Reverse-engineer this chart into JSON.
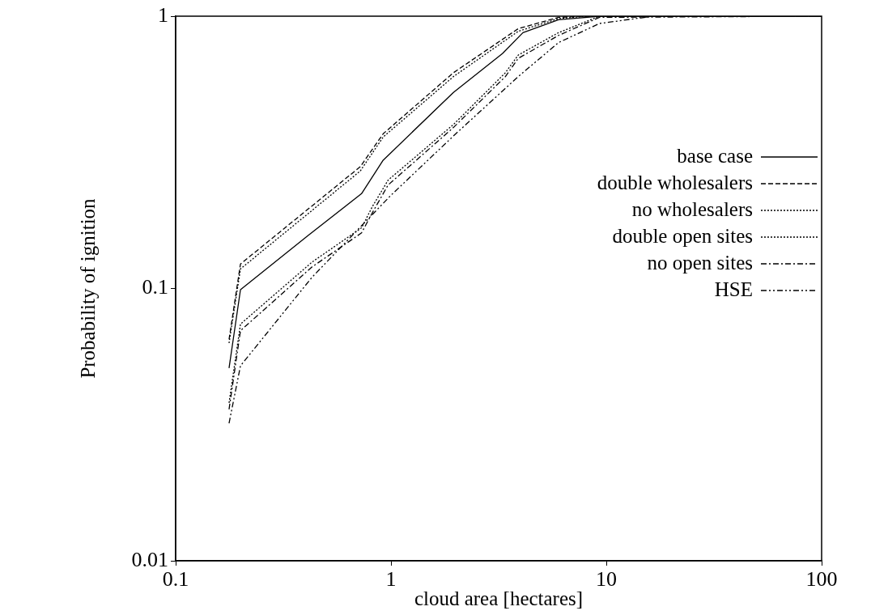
{
  "chart_data": {
    "type": "line",
    "xlabel": "cloud area [hectares]",
    "ylabel": "Probability of ignition",
    "log": "xy",
    "xlim": [
      0.1,
      100
    ],
    "ylim": [
      0.01,
      1
    ],
    "xticks": [
      0.1,
      1,
      10,
      100
    ],
    "yticks": [
      0.01,
      0.1,
      1
    ],
    "grid": false,
    "legend": "right",
    "marker": "none",
    "series": [
      {
        "name": "base case",
        "color": "#000000",
        "line_style": "solid",
        "x": [
          0.177,
          0.2,
          0.41,
          0.73,
          0.92,
          1.95,
          3.3,
          4.1,
          6,
          9.3,
          100
        ],
        "values": [
          0.051,
          0.099,
          0.156,
          0.223,
          0.296,
          0.525,
          0.73,
          0.87,
          0.97,
          1,
          1
        ]
      },
      {
        "name": "double wholesalers",
        "color": "#000000",
        "line_style": "dashed",
        "x": [
          0.177,
          0.2,
          0.72,
          0.92,
          1.95,
          3.9,
          6,
          8,
          100
        ],
        "values": [
          0.065,
          0.123,
          0.28,
          0.37,
          0.62,
          0.9,
          0.99,
          1,
          1
        ]
      },
      {
        "name": "no wholesalers",
        "color": "#000000",
        "line_style": "dotted",
        "x": [
          0.177,
          0.2,
          0.43,
          0.73,
          0.82,
          0.97,
          1.95,
          3.4,
          3.9,
          6,
          9.3,
          100
        ],
        "values": [
          0.038,
          0.074,
          0.125,
          0.167,
          0.2,
          0.25,
          0.4,
          0.62,
          0.72,
          0.87,
          1,
          1
        ]
      },
      {
        "name": "double open sites",
        "color": "#000000",
        "line_style": "dotted",
        "x": [
          0.177,
          0.2,
          0.72,
          0.92,
          1.95,
          3.9,
          6,
          8,
          100
        ],
        "values": [
          0.063,
          0.118,
          0.27,
          0.36,
          0.6,
          0.88,
          0.98,
          1,
          1
        ]
      },
      {
        "name": "no open sites",
        "color": "#000000",
        "line_style": "dashdot",
        "x": [
          0.177,
          0.2,
          0.43,
          0.73,
          0.82,
          0.97,
          1.95,
          3.4,
          3.9,
          6,
          9.3,
          100
        ],
        "values": [
          0.036,
          0.07,
          0.12,
          0.16,
          0.19,
          0.24,
          0.39,
          0.6,
          0.7,
          0.85,
          0.99,
          1
        ]
      },
      {
        "name": "HSE",
        "color": "#000000",
        "line_style": "dashdotdot",
        "x": [
          0.177,
          0.2,
          0.43,
          0.73,
          1,
          2,
          3.9,
          6,
          9.3,
          16.5,
          100
        ],
        "values": [
          0.032,
          0.052,
          0.11,
          0.17,
          0.22,
          0.37,
          0.6,
          0.8,
          0.94,
          1,
          1
        ]
      }
    ]
  }
}
